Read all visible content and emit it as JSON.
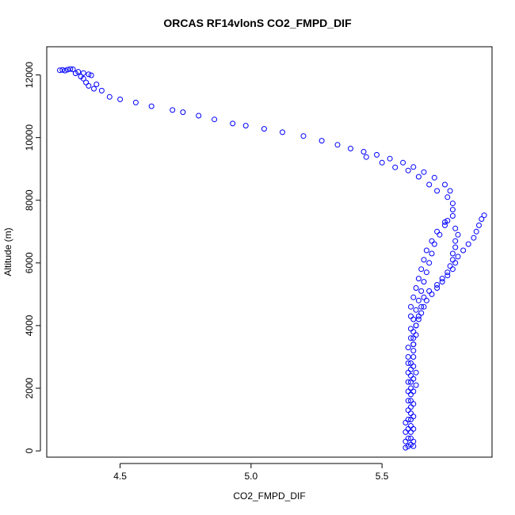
{
  "chart_data": {
    "type": "scatter",
    "title": "ORCAS RF14vlonS CO2_FMPD_DIF",
    "xlabel": "CO2_FMPD_DIF",
    "ylabel": "Altitude (m)",
    "xlim": [
      4.22,
      5.92
    ],
    "ylim": [
      -200,
      12900
    ],
    "x_ticks": [
      4.5,
      5.0,
      5.5
    ],
    "y_ticks": [
      0,
      2000,
      4000,
      6000,
      8000,
      10000,
      12000
    ],
    "x_tick_labels": [
      "4.5",
      "5.0",
      "5.5"
    ],
    "y_tick_labels": [
      "0",
      "2000",
      "4000",
      "6000",
      "8000",
      "10000",
      "12000"
    ],
    "grid": false,
    "marker": "open-circle",
    "series": [
      {
        "color": "#0000ff",
        "points": [
          [
            4.27,
            12150
          ],
          [
            4.28,
            12160
          ],
          [
            4.3,
            12170
          ],
          [
            4.32,
            12180
          ],
          [
            4.31,
            12190
          ],
          [
            4.29,
            12140
          ],
          [
            4.34,
            12100
          ],
          [
            4.36,
            12060
          ],
          [
            4.38,
            12020
          ],
          [
            4.39,
            11990
          ],
          [
            4.33,
            12050
          ],
          [
            4.35,
            11950
          ],
          [
            4.36,
            11880
          ],
          [
            4.37,
            11760
          ],
          [
            4.38,
            11650
          ],
          [
            4.4,
            11560
          ],
          [
            4.41,
            11700
          ],
          [
            4.43,
            11500
          ],
          [
            4.46,
            11300
          ],
          [
            4.5,
            11220
          ],
          [
            4.56,
            11120
          ],
          [
            4.62,
            11000
          ],
          [
            4.7,
            10880
          ],
          [
            4.74,
            10810
          ],
          [
            4.8,
            10700
          ],
          [
            4.86,
            10580
          ],
          [
            4.93,
            10450
          ],
          [
            4.98,
            10380
          ],
          [
            5.05,
            10280
          ],
          [
            5.12,
            10170
          ],
          [
            5.2,
            10050
          ],
          [
            5.27,
            9900
          ],
          [
            5.33,
            9770
          ],
          [
            5.38,
            9650
          ],
          [
            5.43,
            9550
          ],
          [
            5.48,
            9450
          ],
          [
            5.53,
            9330
          ],
          [
            5.58,
            9200
          ],
          [
            5.62,
            9060
          ],
          [
            5.66,
            8900
          ],
          [
            5.7,
            8720
          ],
          [
            5.74,
            8500
          ],
          [
            5.76,
            8300
          ],
          [
            5.44,
            9380
          ],
          [
            5.5,
            9200
          ],
          [
            5.55,
            9050
          ],
          [
            5.6,
            8950
          ],
          [
            5.64,
            8750
          ],
          [
            5.68,
            8500
          ],
          [
            5.71,
            8300
          ],
          [
            5.75,
            8100
          ],
          [
            5.77,
            7900
          ],
          [
            5.77,
            7700
          ],
          [
            5.77,
            7500
          ],
          [
            5.75,
            7350
          ],
          [
            5.74,
            7300
          ],
          [
            5.78,
            7100
          ],
          [
            5.79,
            6900
          ],
          [
            5.78,
            6700
          ],
          [
            5.78,
            6500
          ],
          [
            5.77,
            6300
          ],
          [
            5.77,
            6100
          ],
          [
            5.76,
            5900
          ],
          [
            5.75,
            5700
          ],
          [
            5.73,
            5500
          ],
          [
            5.71,
            5300
          ],
          [
            5.68,
            5100
          ],
          [
            5.66,
            4900
          ],
          [
            5.65,
            4600
          ],
          [
            5.64,
            4300
          ],
          [
            5.63,
            4000
          ],
          [
            5.63,
            3700
          ],
          [
            5.62,
            3400
          ],
          [
            5.74,
            7200
          ],
          [
            5.72,
            6900
          ],
          [
            5.7,
            6600
          ],
          [
            5.69,
            6300
          ],
          [
            5.68,
            6000
          ],
          [
            5.67,
            5700
          ],
          [
            5.66,
            5400
          ],
          [
            5.65,
            5100
          ],
          [
            5.64,
            4800
          ],
          [
            5.63,
            4500
          ],
          [
            5.62,
            4200
          ],
          [
            5.61,
            3900
          ],
          [
            5.61,
            3600
          ],
          [
            5.6,
            3300
          ],
          [
            5.6,
            3000
          ],
          [
            5.71,
            7000
          ],
          [
            5.69,
            6700
          ],
          [
            5.67,
            6400
          ],
          [
            5.66,
            6100
          ],
          [
            5.65,
            5800
          ],
          [
            5.64,
            5500
          ],
          [
            5.63,
            5200
          ],
          [
            5.62,
            4900
          ],
          [
            5.61,
            4600
          ],
          [
            5.61,
            4300
          ],
          [
            5.89,
            7520
          ],
          [
            5.88,
            7400
          ],
          [
            5.87,
            7200
          ],
          [
            5.86,
            7000
          ],
          [
            5.85,
            6800
          ],
          [
            5.83,
            6600
          ],
          [
            5.81,
            6400
          ],
          [
            5.79,
            6200
          ],
          [
            5.78,
            6000
          ],
          [
            5.77,
            5800
          ],
          [
            5.75,
            5600
          ],
          [
            5.73,
            5400
          ],
          [
            5.71,
            5200
          ],
          [
            5.69,
            5000
          ],
          [
            5.67,
            4800
          ],
          [
            5.66,
            4600
          ],
          [
            5.65,
            4400
          ],
          [
            5.64,
            4200
          ],
          [
            5.63,
            4000
          ],
          [
            5.62,
            3800
          ],
          [
            5.62,
            3600
          ],
          [
            5.62,
            3400
          ],
          [
            5.62,
            3200
          ],
          [
            5.62,
            3000
          ],
          [
            5.61,
            2800
          ],
          [
            5.61,
            2600
          ],
          [
            5.61,
            2400
          ],
          [
            5.61,
            2200
          ],
          [
            5.61,
            2000
          ],
          [
            5.61,
            1800
          ],
          [
            5.61,
            1600
          ],
          [
            5.61,
            1400
          ],
          [
            5.61,
            1200
          ],
          [
            5.61,
            1000
          ],
          [
            5.61,
            800
          ],
          [
            5.61,
            600
          ],
          [
            5.61,
            400
          ],
          [
            5.61,
            200
          ],
          [
            5.62,
            150
          ],
          [
            5.6,
            2800
          ],
          [
            5.6,
            2500
          ],
          [
            5.6,
            2200
          ],
          [
            5.6,
            1900
          ],
          [
            5.6,
            1600
          ],
          [
            5.6,
            1300
          ],
          [
            5.6,
            1000
          ],
          [
            5.6,
            700
          ],
          [
            5.6,
            400
          ],
          [
            5.6,
            150
          ],
          [
            5.59,
            100
          ],
          [
            5.62,
            2700
          ],
          [
            5.62,
            2300
          ],
          [
            5.62,
            1900
          ],
          [
            5.62,
            1500
          ],
          [
            5.62,
            1100
          ],
          [
            5.62,
            700
          ],
          [
            5.62,
            300
          ],
          [
            5.63,
            2500
          ],
          [
            5.63,
            2100
          ],
          [
            5.59,
            900
          ],
          [
            5.59,
            600
          ],
          [
            5.59,
            300
          ]
        ]
      }
    ]
  }
}
